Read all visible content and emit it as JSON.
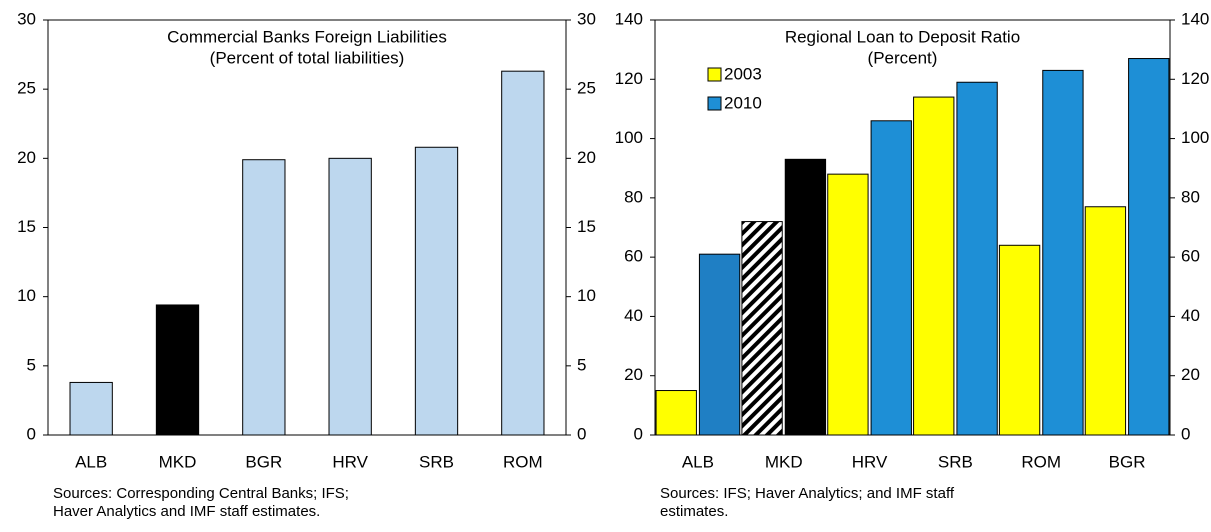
{
  "chart_data": [
    {
      "type": "bar",
      "title": [
        "Commercial Banks Foreign Liabilities",
        "(Percent of total liabilities)"
      ],
      "categories": [
        "ALB",
        "MKD",
        "BGR",
        "HRV",
        "SRB",
        "ROM"
      ],
      "values": [
        3.8,
        9.4,
        19.9,
        20.0,
        20.8,
        26.3
      ],
      "colors": [
        "#bdd7ee",
        "#000000",
        "#bdd7ee",
        "#bdd7ee",
        "#bdd7ee",
        "#bdd7ee"
      ],
      "ylim": [
        0,
        30
      ],
      "yticks": [
        0,
        5,
        10,
        15,
        20,
        25,
        30
      ],
      "y2lim": [
        0,
        30
      ],
      "y2ticks": [
        0,
        5,
        10,
        15,
        20,
        25,
        30
      ],
      "grid": false,
      "note": [
        "Sources: Corresponding Central Banks; IFS;",
        "Haver Analytics and IMF staff estimates."
      ]
    },
    {
      "type": "grouped-bar",
      "title": [
        "Regional Loan to Deposit Ratio",
        "(Percent)"
      ],
      "categories": [
        "ALB",
        "MKD",
        "HRV",
        "SRB",
        "ROM",
        "BGR"
      ],
      "series": [
        {
          "name": "2003",
          "color": "#ffff00",
          "values": [
            15,
            72,
            88,
            114,
            64,
            77
          ],
          "hatched": [
            false,
            true,
            false,
            false,
            false,
            false
          ]
        },
        {
          "name": "2010",
          "color": "#1e8fd6",
          "values": [
            61,
            93,
            106,
            119,
            123,
            127
          ],
          "colors": [
            "#1f7fc4",
            "#000000",
            "#1e8fd6",
            "#1e8fd6",
            "#1e8fd6",
            "#1e8fd6"
          ]
        }
      ],
      "ylim": [
        0,
        140
      ],
      "yticks": [
        0,
        20,
        40,
        60,
        80,
        100,
        120,
        140
      ],
      "y2lim": [
        0,
        140
      ],
      "y2ticks": [
        0,
        20,
        40,
        60,
        80,
        100,
        120,
        140
      ],
      "grid": false,
      "legend": "upper-left",
      "note": [
        "Sources: IFS; Haver Analytics; and IMF staff",
        "estimates."
      ]
    }
  ]
}
